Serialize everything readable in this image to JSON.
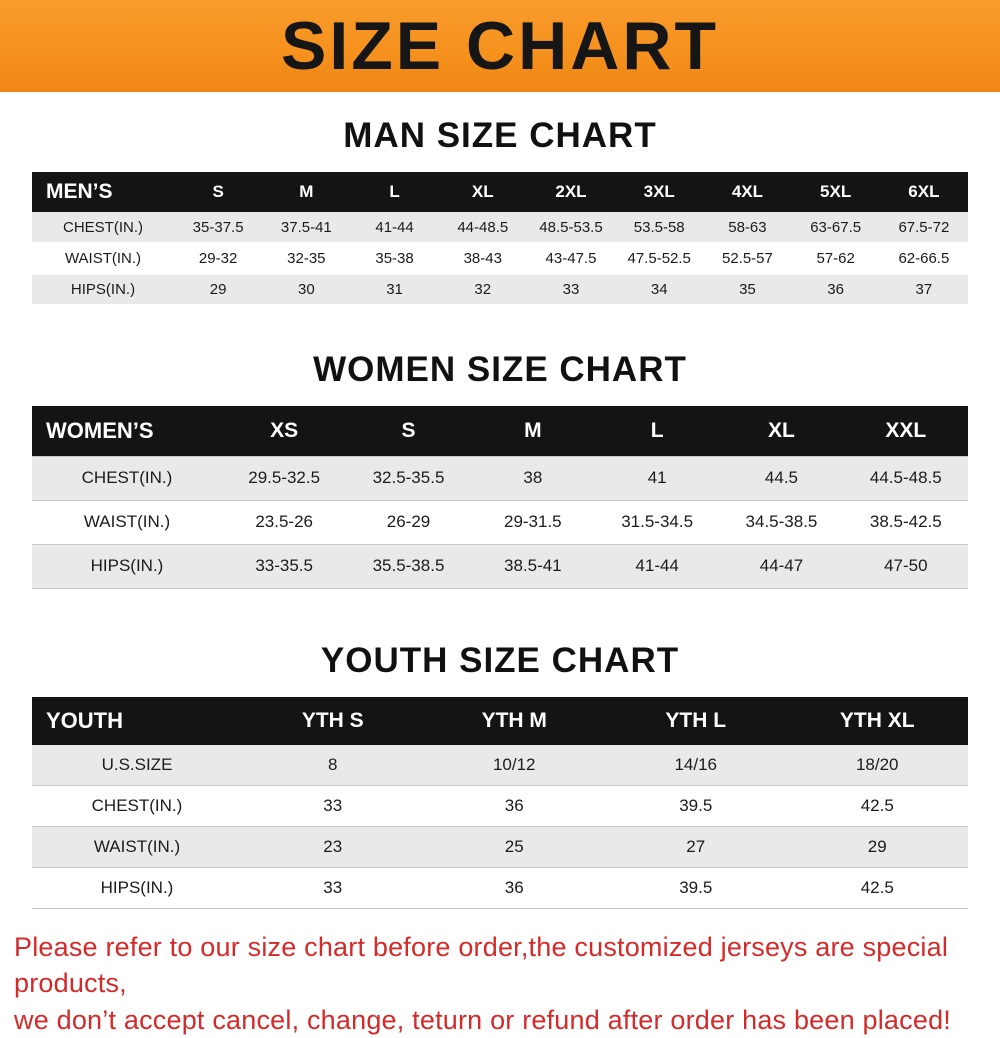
{
  "banner": {
    "title": "SIZE CHART",
    "bg_color": "#f6921e"
  },
  "colors": {
    "table_header_bg": "#141414",
    "row_alt_bg": "#e9e9e9",
    "footer_text": "#d42a2a"
  },
  "man_chart": {
    "title": "MAN SIZE CHART",
    "table": {
      "label": "MEN’S",
      "columns": [
        "S",
        "M",
        "L",
        "XL",
        "2XL",
        "3XL",
        "4XL",
        "5XL",
        "6XL"
      ],
      "rows": [
        {
          "label": "CHEST(IN.)",
          "values": [
            "35-37.5",
            "37.5-41",
            "41-44",
            "44-48.5",
            "48.5-53.5",
            "53.5-58",
            "58-63",
            "63-67.5",
            "67.5-72"
          ]
        },
        {
          "label": "WAIST(IN.)",
          "values": [
            "29-32",
            "32-35",
            "35-38",
            "38-43",
            "43-47.5",
            "47.5-52.5",
            "52.5-57",
            "57-62",
            "62-66.5"
          ]
        },
        {
          "label": "HIPS(IN.)",
          "values": [
            "29",
            "30",
            "31",
            "32",
            "33",
            "34",
            "35",
            "36",
            "37"
          ]
        }
      ]
    }
  },
  "woman_chart": {
    "title": "WOMEN SIZE CHART",
    "table": {
      "label": "WOMEN’S",
      "columns": [
        "XS",
        "S",
        "M",
        "L",
        "XL",
        "XXL"
      ],
      "rows": [
        {
          "label": "CHEST(IN.)",
          "values": [
            "29.5-32.5",
            "32.5-35.5",
            "38",
            "41",
            "44.5",
            "44.5-48.5"
          ]
        },
        {
          "label": "WAIST(IN.)",
          "values": [
            "23.5-26",
            "26-29",
            "29-31.5",
            "31.5-34.5",
            "34.5-38.5",
            "38.5-42.5"
          ]
        },
        {
          "label": "HIPS(IN.)",
          "values": [
            "33-35.5",
            "35.5-38.5",
            "38.5-41",
            "41-44",
            "44-47",
            "47-50"
          ]
        }
      ]
    }
  },
  "youth_chart": {
    "title": "YOUTH SIZE CHART",
    "table": {
      "label": "YOUTH",
      "columns": [
        "YTH S",
        "YTH M",
        "YTH L",
        "YTH XL"
      ],
      "rows": [
        {
          "label": "U.S.SIZE",
          "values": [
            "8",
            "10/12",
            "14/16",
            "18/20"
          ]
        },
        {
          "label": "CHEST(IN.)",
          "values": [
            "33",
            "36",
            "39.5",
            "42.5"
          ]
        },
        {
          "label": "WAIST(IN.)",
          "values": [
            "23",
            "25",
            "27",
            "29"
          ]
        },
        {
          "label": "HIPS(IN.)",
          "values": [
            "33",
            "36",
            "39.5",
            "42.5"
          ]
        }
      ]
    }
  },
  "footer": {
    "line1": "Please refer to our size chart before order,the customized jerseys are special products,",
    "line2": "we don’t accept cancel, change, teturn or refund after order has been placed!"
  }
}
